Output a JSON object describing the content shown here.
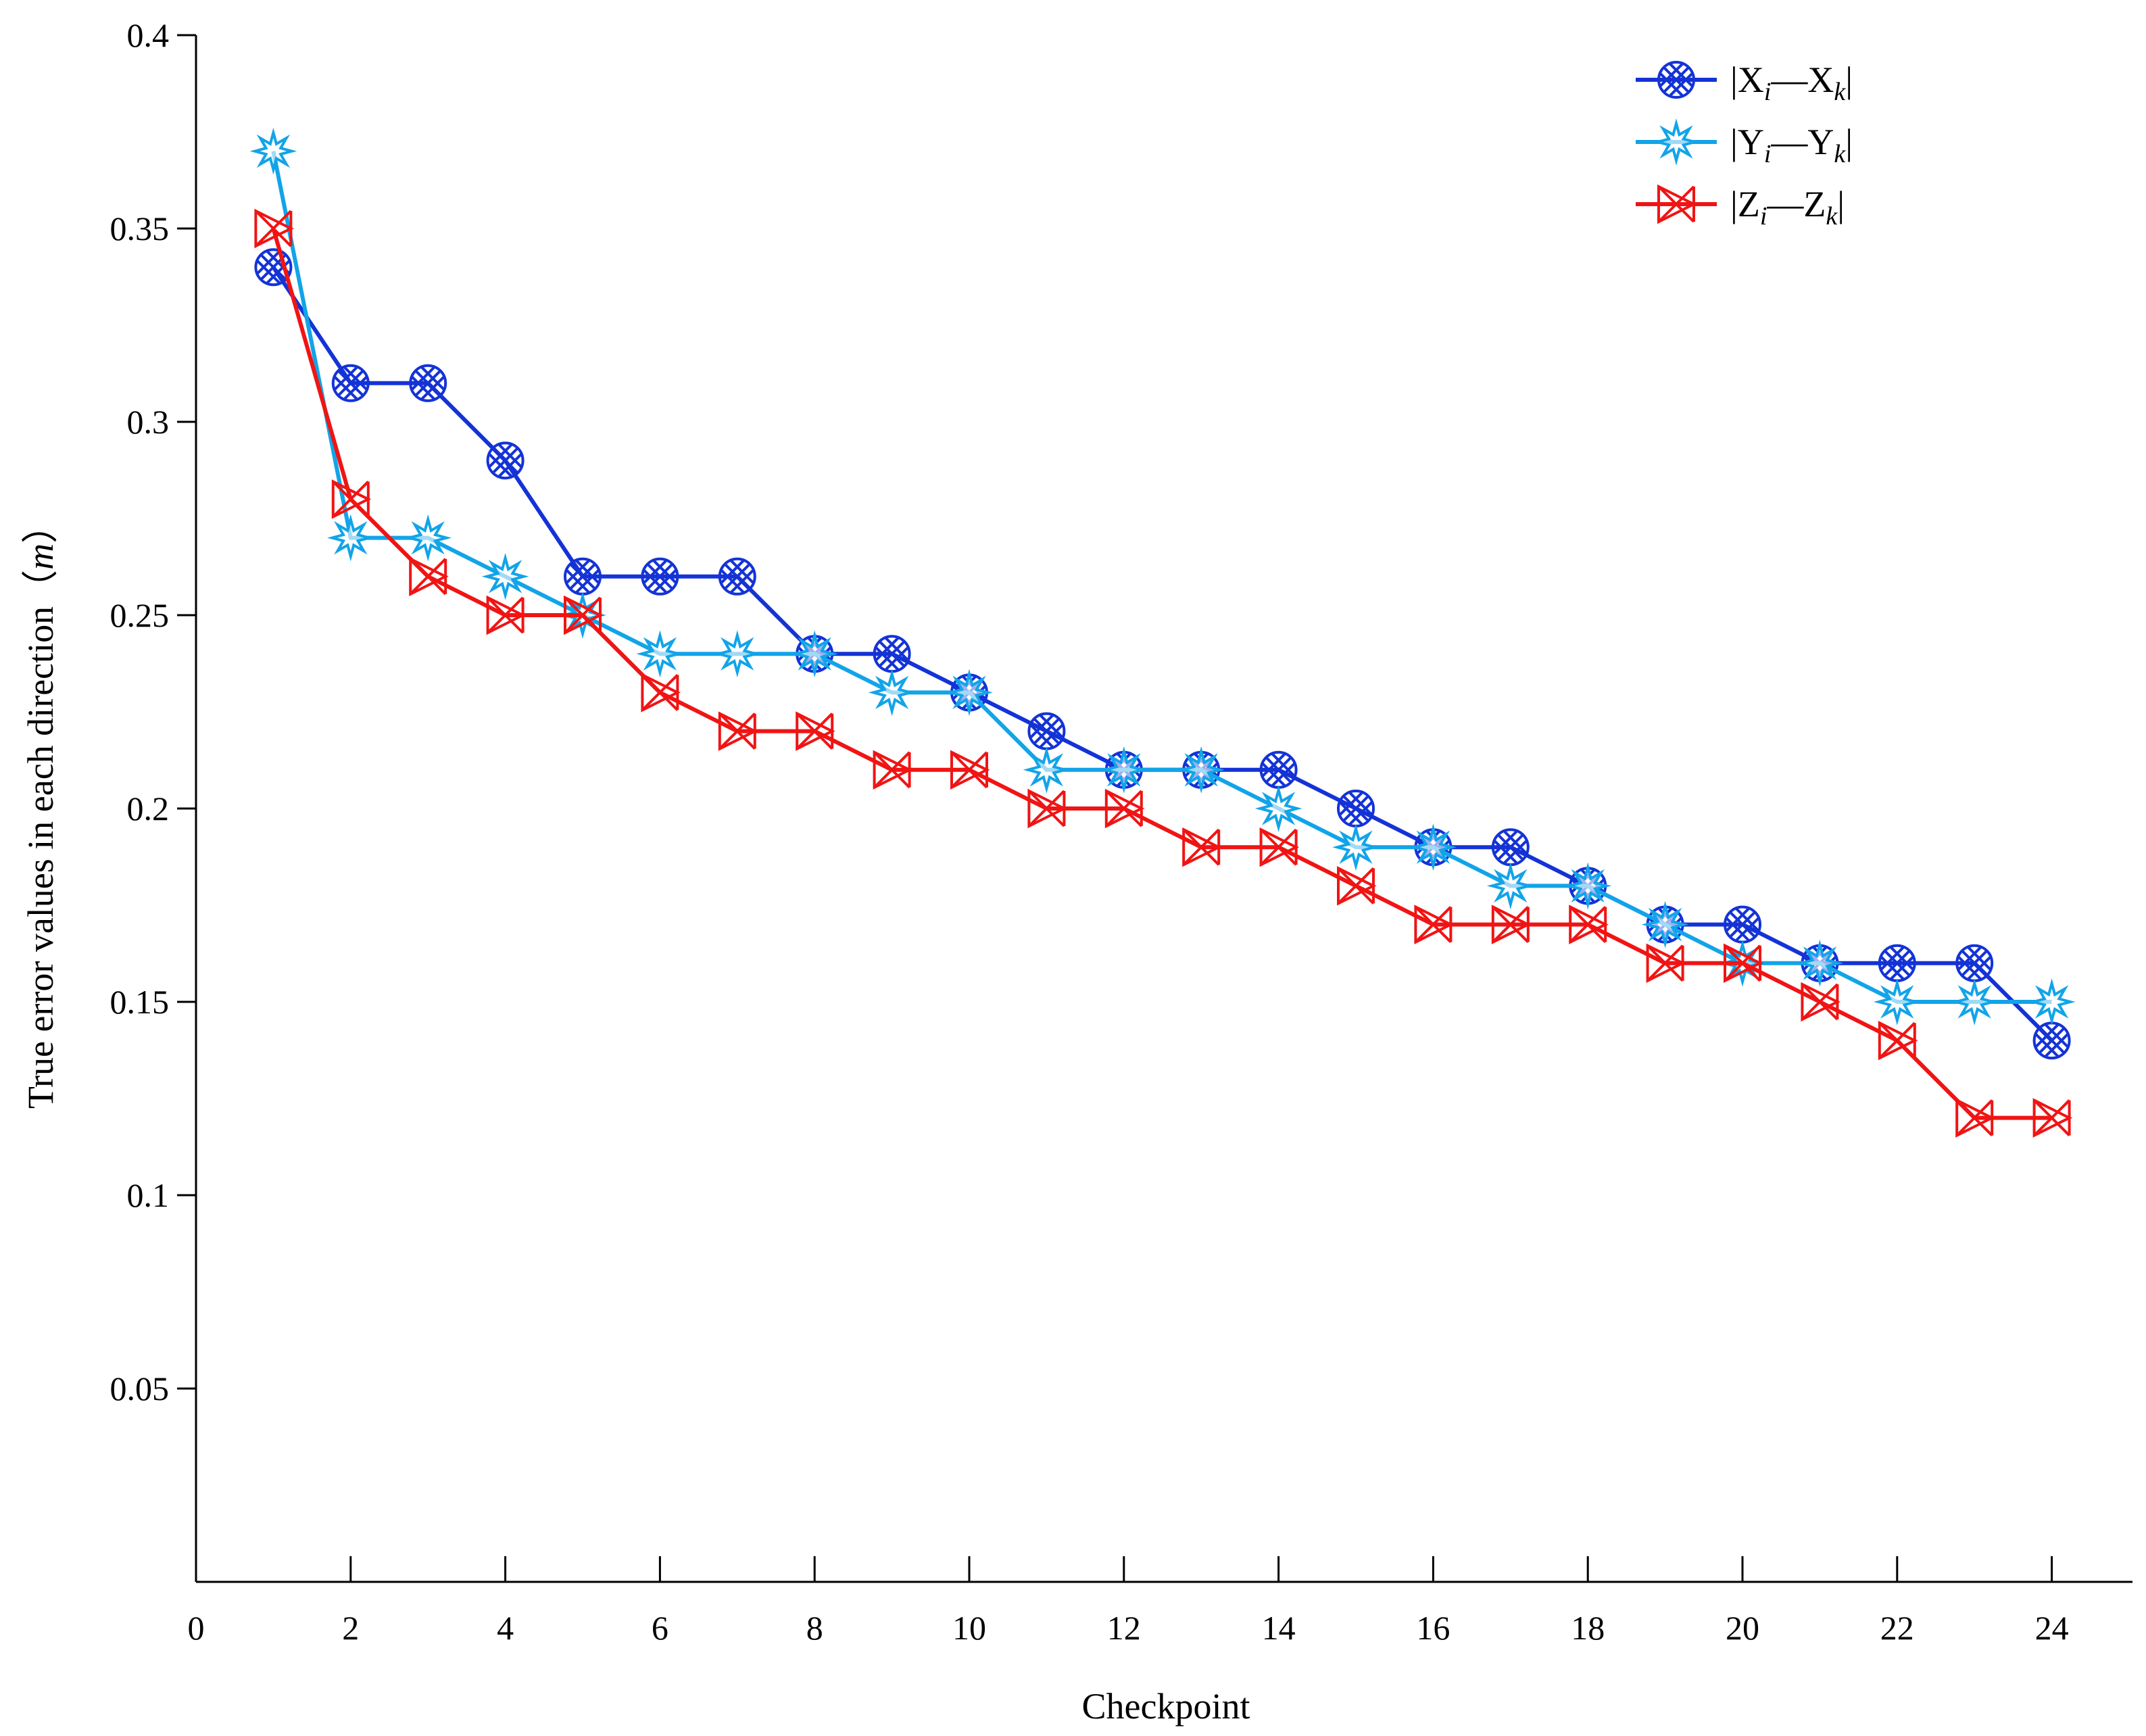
{
  "chart_data": {
    "type": "line",
    "title": "",
    "xlabel": "Checkpoint",
    "ylabel": "True error values in each direction",
    "ylabel_unit": "m",
    "ylabel_open": "（",
    "ylabel_close": "）",
    "xlim": [
      0,
      25
    ],
    "ylim": [
      0,
      0.4
    ],
    "x_ticks": [
      0,
      2,
      4,
      6,
      8,
      10,
      12,
      14,
      16,
      18,
      20,
      22,
      24
    ],
    "y_ticks": [
      0.05,
      0.1,
      0.15,
      0.2,
      0.25,
      0.3,
      0.35,
      0.4
    ],
    "y_tick_labels": [
      "0.05",
      "0.1",
      "0.15",
      "0.2",
      "0.25",
      "0.3",
      "0.35",
      "0.4"
    ],
    "grid": false,
    "legend_position": "top-right",
    "x": [
      1,
      2,
      3,
      4,
      5,
      6,
      7,
      8,
      9,
      10,
      11,
      12,
      13,
      14,
      15,
      16,
      17,
      18,
      19,
      20,
      21,
      22,
      23,
      24
    ],
    "series": [
      {
        "name": "|Xi—Xk|",
        "legend": {
          "open": "|",
          "v1": "X",
          "s1": "i",
          "dash": "—",
          "v2": "X",
          "s2": "k",
          "close": "|"
        },
        "color": "#1433d6",
        "marker": "circle-x",
        "values": [
          0.34,
          0.31,
          0.31,
          0.29,
          0.26,
          0.26,
          0.26,
          0.24,
          0.24,
          0.23,
          0.22,
          0.21,
          0.21,
          0.21,
          0.2,
          0.19,
          0.19,
          0.18,
          0.17,
          0.17,
          0.16,
          0.16,
          0.16,
          0.14
        ]
      },
      {
        "name": "|Yi—Yk|",
        "legend": {
          "open": "|",
          "v1": "Y",
          "s1": "i",
          "dash": "—",
          "v2": "Y",
          "s2": "k",
          "close": "|"
        },
        "color": "#12a4e8",
        "marker": "star",
        "values": [
          0.37,
          0.27,
          0.27,
          0.26,
          0.25,
          0.24,
          0.24,
          0.24,
          0.23,
          0.23,
          0.21,
          0.21,
          0.21,
          0.2,
          0.19,
          0.19,
          0.18,
          0.18,
          0.17,
          0.16,
          0.16,
          0.15,
          0.15,
          0.15
        ]
      },
      {
        "name": "|Zi—Zk|",
        "legend": {
          "open": "|",
          "v1": "Z",
          "s1": "i",
          "dash": "—",
          "v2": "Z",
          "s2": "k",
          "close": "|"
        },
        "color": "#f01414",
        "marker": "box-x",
        "values": [
          0.35,
          0.28,
          0.26,
          0.25,
          0.25,
          0.23,
          0.22,
          0.22,
          0.21,
          0.21,
          0.2,
          0.2,
          0.19,
          0.19,
          0.18,
          0.17,
          0.17,
          0.17,
          0.16,
          0.16,
          0.15,
          0.14,
          0.12,
          0.12
        ]
      }
    ]
  }
}
